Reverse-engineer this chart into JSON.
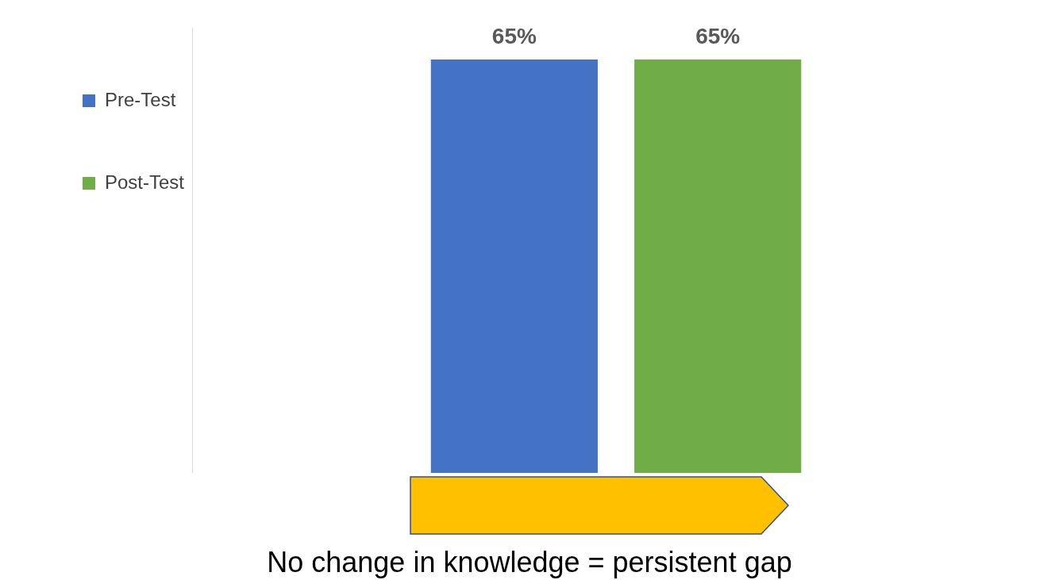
{
  "chart_data": {
    "type": "bar",
    "categories": [
      null
    ],
    "series": [
      {
        "name": "Pre-Test",
        "color": "#4472c4",
        "values": [
          65
        ],
        "value_labels": [
          "65%"
        ]
      },
      {
        "name": "Post-Test",
        "color": "#70ad47",
        "values": [
          65
        ],
        "value_labels": [
          "65%"
        ]
      }
    ],
    "tick_labels": false,
    "grid": false,
    "legend": "left",
    "annotations": [
      "No change in knowledge = persistent gap"
    ]
  }
}
